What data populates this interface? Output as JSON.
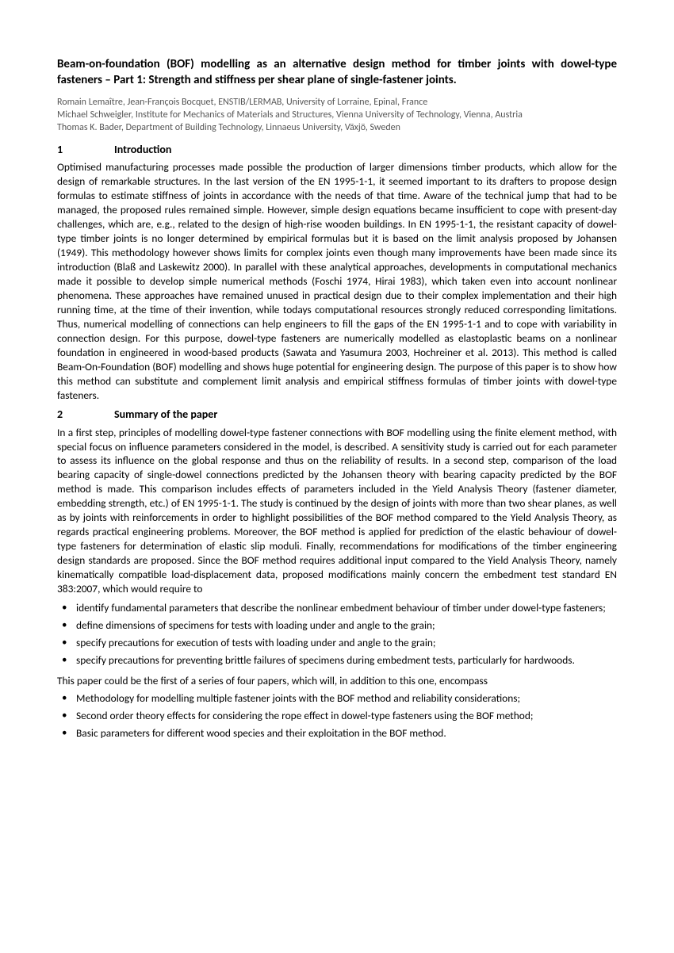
{
  "title": "Beam-on-foundation (BOF) modelling as an alternative design method for timber joints with dowel-type fasteners – Part 1: Strength and stiffness per shear plane of single-fastener joints.",
  "authors": [
    "Romain Lemaître, Jean-François Bocquet, ENSTIB/LERMAB, University of Lorraine, Epinal, France",
    "Michael Schweigler, Institute for Mechanics of Materials and Structures, Vienna University of Technology, Vienna, Austria",
    "Thomas K. Bader, Department of Building Technology, Linnaeus University, Växjö, Sweden"
  ],
  "sections": {
    "s1": {
      "num": "1",
      "heading": "Introduction"
    },
    "s2": {
      "num": "2",
      "heading": "Summary of the paper"
    }
  },
  "intro_body": "Optimised manufacturing processes made possible the production of larger dimensions timber products, which allow for the design of remarkable structures. In the last version of the EN 1995-1-1, it seemed important to its drafters to propose design formulas to estimate stiffness of joints in accordance with the needs of that time. Aware of the technical jump that had to be managed, the proposed rules remained simple. However, simple design equations became insufficient to cope with present-day challenges, which are, e.g., related to the design of high-rise wooden buildings. In EN 1995-1-1, the resistant capacity of dowel-type timber joints is no longer determined by empirical formulas but it is based on the limit analysis proposed by Johansen (1949). This methodology however shows limits for complex joints even though many improvements have been made since its introduction (Blaß and Laskewitz 2000). In parallel with these analytical approaches, developments in computational mechanics made it possible to develop simple numerical methods (Foschi 1974, Hirai 1983), which taken even into account nonlinear phenomena. These approaches have remained unused in practical design due to their complex implementation and their high running time, at the time of their invention, while todays computational resources strongly reduced corresponding limitations. Thus, numerical modelling of connections can help engineers to fill the gaps of the EN 1995-1-1 and to cope with variability in connection design. For this purpose, dowel-type fasteners are numerically modelled as elastoplastic beams on a nonlinear foundation in engineered in wood-based products (Sawata and Yasumura 2003, Hochreiner et al. 2013). This method is called Beam-On-Foundation (BOF) modelling and shows huge potential for engineering design. The purpose of this paper is to show how this method can substitute and complement limit analysis and empirical stiffness formulas of timber joints with dowel-type fasteners.",
  "summary_body": "In a first step, principles of modelling dowel-type fastener connections with BOF modelling using the finite element method, with special focus on influence parameters considered in the model, is described. A sensitivity study is carried out for each parameter to assess its influence on the global response and thus on the reliability of results. In a second step, comparison of the load bearing capacity of single-dowel connections predicted by the Johansen theory with bearing capacity predicted by the BOF method is made. This comparison includes effects of parameters included in the Yield Analysis Theory (fastener diameter, embedding strength, etc.) of EN 1995-1-1. The study is continued by the design of joints with more than two shear planes, as well as by joints with reinforcements in order to highlight possibilities of the BOF method compared to the Yield Analysis Theory, as regards practical engineering problems. Moreover, the BOF method is applied for prediction of the elastic behaviour of dowel-type fasteners for determination of elastic slip moduli. Finally, recommendations for modifications of the timber engineering design standards are proposed. Since the BOF method requires additional input compared to the Yield Analysis Theory, namely kinematically compatible load-displacement data, proposed modifications mainly concern the embedment test standard EN 383:2007, which would require to",
  "list1": [
    "identify fundamental parameters that describe the nonlinear embedment behaviour of timber under dowel-type fasteners;",
    "define dimensions of specimens for tests with loading under and angle to the grain;",
    "specify precautions for execution of tests with loading under and angle to the grain;",
    "specify precautions for preventing brittle failures of specimens during embedment tests, particularly for hardwoods."
  ],
  "bridge_text": "This paper could be the first of a series of four papers, which will, in addition to this one, encompass",
  "list2": [
    "Methodology for modelling multiple fastener joints with the BOF method and reliability considerations;",
    "Second order theory effects for considering the rope effect in dowel-type fasteners using the BOF method;",
    "Basic parameters for different wood species and their exploitation in the BOF method."
  ]
}
